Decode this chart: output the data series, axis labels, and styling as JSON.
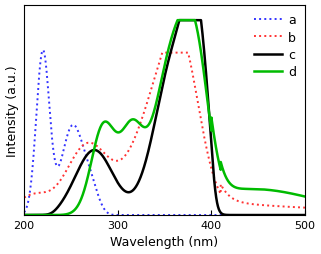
{
  "xlabel": "Wavelength (nm)",
  "ylabel": "Intensity (a.u.)",
  "xlim": [
    200,
    500
  ],
  "legend_labels": [
    "a",
    "b",
    "c",
    "d"
  ],
  "legend_colors": [
    "#3333ff",
    "#ff3333",
    "#000000",
    "#00bb00"
  ],
  "background_color": "#ffffff",
  "tick_fontsize": 8,
  "label_fontsize": 9,
  "legend_fontsize": 9
}
